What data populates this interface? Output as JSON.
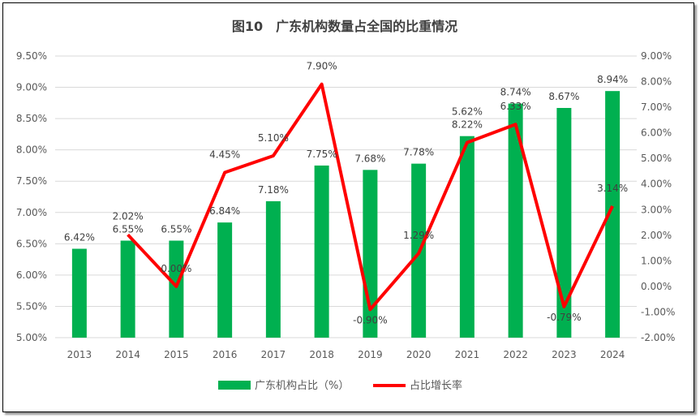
{
  "chart_data": {
    "type": "bar+line",
    "title": "图10　广东机构数量占全国的比重情况",
    "categories": [
      "2013",
      "2014",
      "2015",
      "2016",
      "2017",
      "2018",
      "2019",
      "2020",
      "2021",
      "2022",
      "2023",
      "2024"
    ],
    "series": [
      {
        "name": "广东机构占比（%）",
        "type": "bar",
        "axis": "left",
        "color": "#00B050",
        "values": [
          6.42,
          6.55,
          6.55,
          6.84,
          7.18,
          7.75,
          7.68,
          7.78,
          8.22,
          8.74,
          8.67,
          8.94
        ],
        "labels": [
          "6.42%",
          "6.55%",
          "6.55%",
          "6.84%",
          "7.18%",
          "7.75%",
          "7.68%",
          "7.78%",
          "8.22%",
          "8.74%",
          "8.67%",
          "8.94%"
        ]
      },
      {
        "name": "占比增长率",
        "type": "line",
        "axis": "right",
        "color": "#FF0000",
        "values": [
          null,
          2.02,
          0.0,
          4.45,
          5.1,
          7.9,
          -0.9,
          1.29,
          5.62,
          6.33,
          -0.79,
          3.14
        ],
        "labels": [
          "",
          "2.02%",
          "0.00%",
          "4.45%",
          "5.10%",
          "7.90%",
          "-0.90%",
          "1.29%",
          "5.62%",
          "6.33%",
          "-0.79%",
          "3.14%"
        ]
      }
    ],
    "y_left": {
      "range": [
        5.0,
        9.5
      ],
      "ticks": [
        "5.00%",
        "5.50%",
        "6.00%",
        "6.50%",
        "7.00%",
        "7.50%",
        "8.00%",
        "8.50%",
        "9.00%",
        "9.50%"
      ]
    },
    "y_right": {
      "range": [
        -2,
        9
      ],
      "ticks": [
        "-2.00%",
        "-1.00%",
        "0.00%",
        "1.00%",
        "2.00%",
        "3.00%",
        "4.00%",
        "5.00%",
        "6.00%",
        "7.00%",
        "8.00%",
        "9.00%"
      ]
    },
    "grid": true,
    "legend": "bottom"
  }
}
